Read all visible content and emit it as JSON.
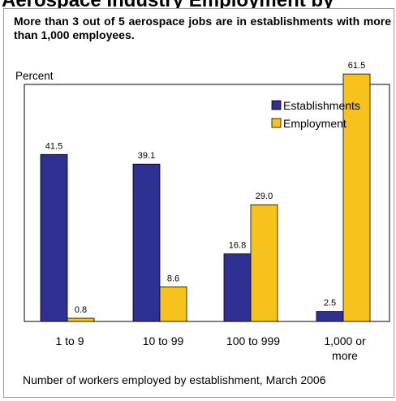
{
  "page": {
    "title": "Aerospace Industry Employment by",
    "subtitle": "More than 3 out of 5 aerospace jobs are in establishments with more than 1,000 employees."
  },
  "chart_data": {
    "type": "bar",
    "ylabel": "Percent",
    "xlabel": "Number of workers employed by establishment, March 2006",
    "categories": [
      "1 to 9",
      "10 to 99",
      "100 to 999",
      "1,000 or more"
    ],
    "series": [
      {
        "name": "Establishments",
        "color": "#2e3192",
        "values": [
          41.5,
          39.1,
          16.8,
          2.5
        ]
      },
      {
        "name": "Employment",
        "color": "#f7c21c",
        "values": [
          0.8,
          8.6,
          29.0,
          61.5
        ]
      }
    ],
    "ylim": [
      0,
      70
    ],
    "grid": false,
    "legend_position": "top-right"
  }
}
